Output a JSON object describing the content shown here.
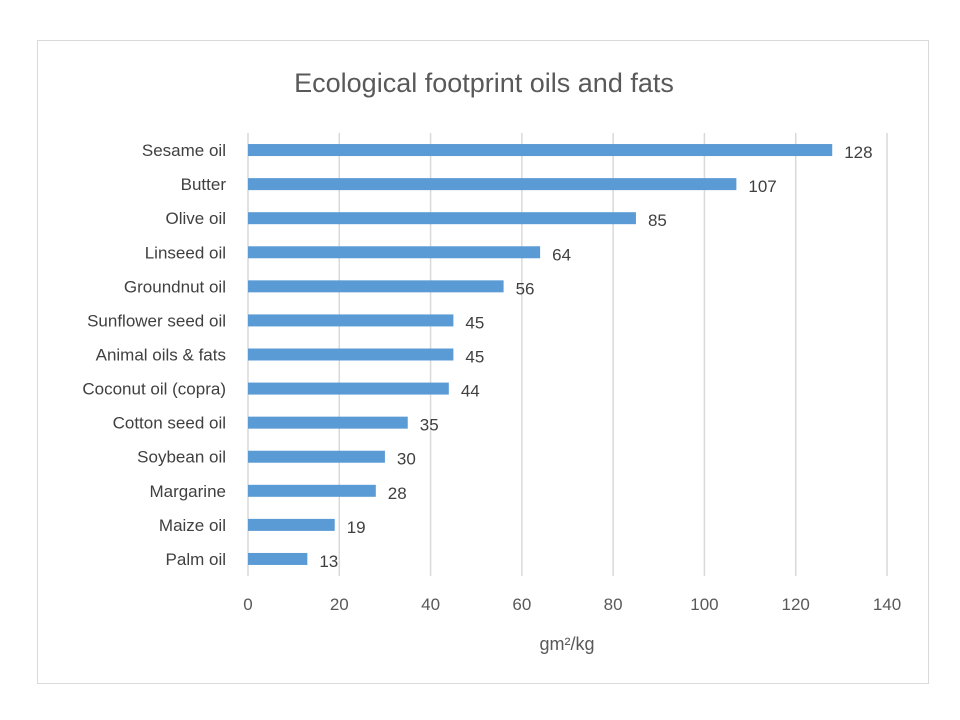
{
  "chart_data": {
    "type": "bar",
    "orientation": "horizontal",
    "title": "Ecological footprint oils and fats",
    "xlabel": "gm²/kg",
    "ylabel": "",
    "categories": [
      "Sesame oil",
      "Butter",
      "Olive oil",
      "Linseed oil",
      "Groundnut oil",
      "Sunflower seed oil",
      "Animal oils & fats",
      "Coconut oil (copra)",
      "Cotton seed oil",
      "Soybean oil",
      "Margarine",
      "Maize oil",
      "Palm oil"
    ],
    "values": [
      128,
      107,
      85,
      64,
      56,
      45,
      45,
      44,
      35,
      30,
      28,
      19,
      13
    ],
    "xlim": [
      0,
      140
    ],
    "xticks": [
      0,
      20,
      40,
      60,
      80,
      100,
      120,
      140
    ],
    "grid": true,
    "bar_color": "#5b9bd5",
    "data_labels": true
  }
}
